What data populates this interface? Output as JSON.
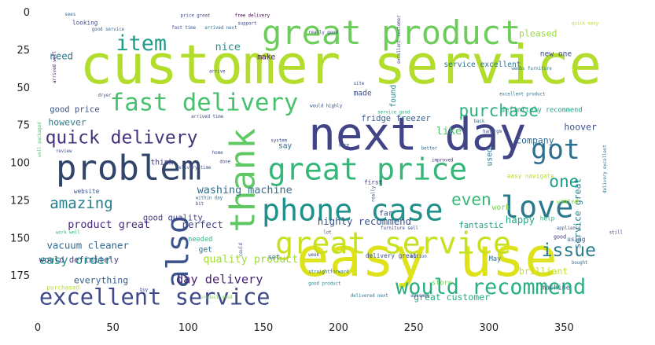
{
  "chart_data": {
    "type": "wordcloud",
    "title": "",
    "xlabel": "",
    "ylabel": "",
    "xlim": [
      0,
      400
    ],
    "ylim": [
      200,
      0
    ],
    "xticks": [
      0,
      50,
      100,
      150,
      200,
      250,
      300,
      350
    ],
    "yticks": [
      0,
      25,
      50,
      75,
      100,
      125,
      150,
      175
    ],
    "grid": false,
    "words": [
      {
        "text": "customer service",
        "x": 28,
        "y": 47,
        "size": 36,
        "color": "#b2dd2d"
      },
      {
        "text": "easy use",
        "x": 172,
        "y": 175,
        "size": 36,
        "color": "#dde318"
      },
      {
        "text": "next day",
        "x": 180,
        "y": 91,
        "size": 30,
        "color": "#414487"
      },
      {
        "text": "great product",
        "x": 149,
        "y": 21,
        "size": 22,
        "color": "#6ccd5a"
      },
      {
        "text": "problem",
        "x": 12,
        "y": 111,
        "size": 23,
        "color": "#31446b"
      },
      {
        "text": "thank",
        "x": 144,
        "y": 146,
        "size": 23,
        "color": "#5ec962",
        "rotate": true
      },
      {
        "text": "great price",
        "x": 153,
        "y": 111,
        "size": 20,
        "color": "#35b779"
      },
      {
        "text": "phone case",
        "x": 149,
        "y": 138,
        "size": 20,
        "color": "#21918c"
      },
      {
        "text": "also",
        "x": 100,
        "y": 183,
        "size": 20,
        "color": "#3b528b",
        "rotate": true
      },
      {
        "text": "love",
        "x": 308,
        "y": 136,
        "size": 20,
        "color": "#2a788e"
      },
      {
        "text": "great service",
        "x": 158,
        "y": 160,
        "size": 20,
        "color": "#c8e020"
      },
      {
        "text": "fast delivery",
        "x": 48,
        "y": 65,
        "size": 16,
        "color": "#48c16e"
      },
      {
        "text": "excellent service",
        "x": 1,
        "y": 194,
        "size": 15,
        "color": "#3e4989"
      },
      {
        "text": "would recommend",
        "x": 238,
        "y": 187,
        "size": 14,
        "color": "#29af7f"
      },
      {
        "text": "got",
        "x": 328,
        "y": 97,
        "size": 18,
        "color": "#2d708e"
      },
      {
        "text": "item",
        "x": 52,
        "y": 25,
        "size": 14,
        "color": "#1e9b8a"
      },
      {
        "text": "quick delivery",
        "x": 5,
        "y": 87,
        "size": 12,
        "color": "#46337e"
      },
      {
        "text": "purchase",
        "x": 280,
        "y": 69,
        "size": 11,
        "color": "#2db27d"
      },
      {
        "text": "issue",
        "x": 335,
        "y": 162,
        "size": 12,
        "color": "#287d8e"
      },
      {
        "text": "even",
        "x": 275,
        "y": 128,
        "size": 11,
        "color": "#38b977"
      },
      {
        "text": "one",
        "x": 340,
        "y": 116,
        "size": 11,
        "color": "#1fa088"
      },
      {
        "text": "amazing",
        "x": 8,
        "y": 130,
        "size": 10,
        "color": "#277f8e"
      },
      {
        "text": "washing machine",
        "x": 106,
        "y": 120,
        "size": 7,
        "color": "#2e6e8e"
      },
      {
        "text": "day delivery",
        "x": 92,
        "y": 180,
        "size": 8,
        "color": "#482475"
      },
      {
        "text": "easy order",
        "x": 1,
        "y": 167,
        "size": 8,
        "color": "#1f9e89"
      },
      {
        "text": "great customer",
        "x": 250,
        "y": 191,
        "size": 6,
        "color": "#27ad81"
      },
      {
        "text": "highly recommend",
        "x": 186,
        "y": 141,
        "size": 6.5,
        "color": "#39568c"
      },
      {
        "text": "product great",
        "x": 20,
        "y": 143,
        "size": 7,
        "color": "#482878"
      },
      {
        "text": "vacuum cleaner",
        "x": 6,
        "y": 157,
        "size": 6.5,
        "color": "#31688e"
      },
      {
        "text": "quality product",
        "x": 110,
        "y": 166,
        "size": 7,
        "color": "#a0da39"
      },
      {
        "text": "everything",
        "x": 24,
        "y": 180,
        "size": 6,
        "color": "#34608d"
      },
      {
        "text": "perfect",
        "x": 96,
        "y": 143,
        "size": 6.5,
        "color": "#3f4889"
      },
      {
        "text": "happy",
        "x": 311,
        "y": 140,
        "size": 6.5,
        "color": "#22a884"
      },
      {
        "text": "nice",
        "x": 118,
        "y": 25,
        "size": 7,
        "color": "#21918c"
      },
      {
        "text": "like",
        "x": 265,
        "y": 81,
        "size": 7,
        "color": "#50c46a"
      },
      {
        "text": "hoover",
        "x": 350,
        "y": 78,
        "size": 6,
        "color": "#3b528b"
      },
      {
        "text": "company",
        "x": 318,
        "y": 87,
        "size": 6,
        "color": "#30698e"
      },
      {
        "text": "pleased",
        "x": 320,
        "y": 16,
        "size": 6,
        "color": "#9bd93c"
      },
      {
        "text": "service great",
        "x": 361,
        "y": 157,
        "size": 6,
        "color": "#26828e",
        "rotate": true
      },
      {
        "text": "brilliant",
        "x": 320,
        "y": 174,
        "size": 6,
        "color": "#bddf26"
      },
      {
        "text": "fantastic",
        "x": 280,
        "y": 143,
        "size": 5.5,
        "color": "#20a386"
      },
      {
        "text": "good price",
        "x": 8,
        "y": 66,
        "size": 5.5,
        "color": "#3b528b"
      },
      {
        "text": "however",
        "x": 7,
        "y": 75,
        "size": 6,
        "color": "#277f8e"
      },
      {
        "text": "need",
        "x": 8,
        "y": 31,
        "size": 6.5,
        "color": "#2a788e"
      },
      {
        "text": "good quality",
        "x": 70,
        "y": 138,
        "size": 5.5,
        "color": "#433e85"
      },
      {
        "text": "would definitely",
        "x": 1,
        "y": 166,
        "size": 5.5,
        "color": "#414487"
      },
      {
        "text": "fridge freezer",
        "x": 215,
        "y": 72,
        "size": 5.5,
        "color": "#35608d"
      },
      {
        "text": "definitely recommend",
        "x": 308,
        "y": 66,
        "size": 4.5,
        "color": "#1fa187"
      },
      {
        "text": "new one",
        "x": 334,
        "y": 29,
        "size": 5,
        "color": "#3e4a89"
      },
      {
        "text": "service excellent",
        "x": 270,
        "y": 36,
        "size": 5,
        "color": "#2c728e"
      },
      {
        "text": "make",
        "x": 146,
        "y": 31,
        "size": 5,
        "color": "#471365"
      },
      {
        "text": "found",
        "x": 238,
        "y": 63,
        "size": 5,
        "color": "#25848e",
        "rotate": true
      },
      {
        "text": "made",
        "x": 210,
        "y": 55,
        "size": 5,
        "color": "#3d4e8a"
      },
      {
        "text": "say",
        "x": 160,
        "y": 90,
        "size": 5,
        "color": "#30698e"
      },
      {
        "text": "think",
        "x": 75,
        "y": 101,
        "size": 5,
        "color": "#443983"
      },
      {
        "text": "used",
        "x": 302,
        "y": 102,
        "size": 5,
        "color": "#2c738e",
        "rotate": true
      },
      {
        "text": "far",
        "x": 227,
        "y": 135,
        "size": 5,
        "color": "#3c4f8a"
      },
      {
        "text": "work",
        "x": 302,
        "y": 131,
        "size": 5,
        "color": "#7ad151"
      },
      {
        "text": "wanted",
        "x": 345,
        "y": 127,
        "size": 4,
        "color": "#99d83d"
      },
      {
        "text": "help",
        "x": 334,
        "y": 138,
        "size": 4,
        "color": "#29af7f"
      },
      {
        "text": "needed",
        "x": 100,
        "y": 152,
        "size": 4.5,
        "color": "#31b57b"
      },
      {
        "text": "get",
        "x": 107,
        "y": 159,
        "size": 5,
        "color": "#2e6f8e"
      },
      {
        "text": "set",
        "x": 153,
        "y": 164,
        "size": 4.5,
        "color": "#30698e"
      },
      {
        "text": "May",
        "x": 300,
        "y": 165,
        "size": 4.5,
        "color": "#2d718e"
      },
      {
        "text": "machine",
        "x": 335,
        "y": 184,
        "size": 4.5,
        "color": "#31688e"
      },
      {
        "text": "store",
        "x": 262,
        "y": 181,
        "size": 4.5,
        "color": "#73d056"
      },
      {
        "text": "delivery great",
        "x": 218,
        "y": 163,
        "size": 4,
        "color": "#3d4d8a"
      },
      {
        "text": "first",
        "x": 217,
        "y": 114,
        "size": 4,
        "color": "#46307e"
      },
      {
        "text": "website",
        "x": 24,
        "y": 120,
        "size": 4,
        "color": "#38588c"
      },
      {
        "text": "purchased",
        "x": 6,
        "y": 184,
        "size": 4,
        "color": "#b5de2b"
      },
      {
        "text": "looking",
        "x": 23,
        "y": 8,
        "size": 4,
        "color": "#3e4a89"
      },
      {
        "text": "easy navigate",
        "x": 312,
        "y": 110,
        "size": 4,
        "color": "#b8de29"
      },
      {
        "text": "using",
        "x": 352,
        "y": 152,
        "size": 4,
        "color": "#38588c"
      },
      {
        "text": "good",
        "x": 343,
        "y": 150,
        "size": 3.5,
        "color": "#453781"
      },
      {
        "text": "well packaged",
        "x": 2,
        "y": 96,
        "size": 3,
        "color": "#52c569",
        "rotate": true
      },
      {
        "text": "arrived well",
        "x": 12,
        "y": 47,
        "size": 3,
        "color": "#471164",
        "rotate": true
      },
      {
        "text": "free delivery",
        "x": 131,
        "y": 3,
        "size": 3,
        "color": "#440154"
      },
      {
        "text": "support",
        "x": 133,
        "y": 8,
        "size": 3,
        "color": "#3e4989"
      },
      {
        "text": "price great",
        "x": 95,
        "y": 3,
        "size": 3,
        "color": "#404688"
      },
      {
        "text": "good service",
        "x": 36,
        "y": 12,
        "size": 3,
        "color": "#355f8d"
      },
      {
        "text": "fast time",
        "x": 89,
        "y": 11,
        "size": 3,
        "color": "#3b528b"
      },
      {
        "text": "arrived next",
        "x": 111,
        "y": 11,
        "size": 3,
        "color": "#2e6e8e"
      },
      {
        "text": "really good",
        "x": 180,
        "y": 14,
        "size": 3,
        "color": "#3e4a89"
      },
      {
        "text": "excellent customer",
        "x": 241,
        "y": 34,
        "size": 3,
        "color": "#3f4788",
        "rotate": true
      },
      {
        "text": "wembs furniture",
        "x": 315,
        "y": 38,
        "size": 3,
        "color": "#2a778e"
      },
      {
        "text": "quick easy",
        "x": 355,
        "y": 8,
        "size": 3,
        "color": "#bddf26"
      },
      {
        "text": "excellent product",
        "x": 307,
        "y": 55,
        "size": 3,
        "color": "#2c728e"
      },
      {
        "text": "would highly",
        "x": 181,
        "y": 63,
        "size": 3,
        "color": "#3c4f8a"
      },
      {
        "text": "service good",
        "x": 226,
        "y": 67,
        "size": 3,
        "color": "#29af7f"
      },
      {
        "text": "arrived time",
        "x": 102,
        "y": 70,
        "size": 3,
        "color": "#3e4a89"
      },
      {
        "text": "delivery time",
        "x": 92,
        "y": 104,
        "size": 3,
        "color": "#3b528b"
      },
      {
        "text": "within day",
        "x": 105,
        "y": 124,
        "size": 3,
        "color": "#30698e"
      },
      {
        "text": "delivery excellent",
        "x": 378,
        "y": 120,
        "size": 3,
        "color": "#2d718e",
        "rotate": true
      },
      {
        "text": "straightforward",
        "x": 180,
        "y": 173,
        "size": 3,
        "color": "#2e6f8e"
      },
      {
        "text": "delivered next",
        "x": 208,
        "y": 189,
        "size": 3,
        "color": "#2c738e"
      },
      {
        "text": "good product",
        "x": 180,
        "y": 181,
        "size": 3,
        "color": "#24868e"
      },
      {
        "text": "product good",
        "x": 108,
        "y": 190,
        "size": 3,
        "color": "#7ad151"
      },
      {
        "text": "appliance",
        "x": 345,
        "y": 144,
        "size": 3,
        "color": "#38598c"
      },
      {
        "text": "bought",
        "x": 355,
        "y": 167,
        "size": 3,
        "color": "#2e6e8e"
      },
      {
        "text": "still",
        "x": 380,
        "y": 147,
        "size": 3,
        "color": "#3e4a89"
      },
      {
        "text": "furniture sell",
        "x": 228,
        "y": 144,
        "size": 3,
        "color": "#3e4a89"
      },
      {
        "text": "work well",
        "x": 12,
        "y": 147,
        "size": 3,
        "color": "#31b57b"
      },
      {
        "text": "handrgm",
        "x": 296,
        "y": 80,
        "size": 3,
        "color": "#3b528b"
      },
      {
        "text": "better",
        "x": 255,
        "y": 91,
        "size": 3,
        "color": "#30698e"
      },
      {
        "text": "improved",
        "x": 262,
        "y": 99,
        "size": 3,
        "color": "#472d7b"
      },
      {
        "text": "dryer",
        "x": 40,
        "y": 56,
        "size": 3,
        "color": "#3b528b"
      },
      {
        "text": "sees",
        "x": 18,
        "y": 2,
        "size": 3,
        "color": "#31688e"
      },
      {
        "text": "system",
        "x": 155,
        "y": 86,
        "size": 3,
        "color": "#3e4a89"
      },
      {
        "text": "review",
        "x": 12,
        "y": 93,
        "size": 3,
        "color": "#3b528b"
      },
      {
        "text": "site",
        "x": 210,
        "y": 48,
        "size": 3,
        "color": "#3e4a89"
      },
      {
        "text": "back",
        "x": 290,
        "y": 73,
        "size": 3,
        "color": "#2c728e"
      },
      {
        "text": "really",
        "x": 224,
        "y": 126,
        "size": 3,
        "color": "#3b528b",
        "rotate": true
      },
      {
        "text": "option",
        "x": 248,
        "y": 163,
        "size": 3,
        "color": "#3e4a89"
      },
      {
        "text": "awesome",
        "x": 248,
        "y": 189,
        "size": 3,
        "color": "#3b528b"
      },
      {
        "text": "buy",
        "x": 68,
        "y": 185,
        "size": 3,
        "color": "#3e4a89"
      },
      {
        "text": "could",
        "x": 136,
        "y": 162,
        "size": 3,
        "color": "#3b528b",
        "rotate": true
      },
      {
        "text": "arrive",
        "x": 114,
        "y": 40,
        "size": 3,
        "color": "#3e4a89"
      },
      {
        "text": "home",
        "x": 116,
        "y": 94,
        "size": 3,
        "color": "#3b528b"
      },
      {
        "text": "done",
        "x": 121,
        "y": 100,
        "size": 3,
        "color": "#3e4a89"
      },
      {
        "text": "sure",
        "x": 200,
        "y": 89,
        "size": 3,
        "color": "#3b528b"
      },
      {
        "text": "bit",
        "x": 105,
        "y": 128,
        "size": 3,
        "color": "#3e4a89"
      },
      {
        "text": "lot",
        "x": 190,
        "y": 147,
        "size": 3,
        "color": "#3b528b"
      },
      {
        "text": "week",
        "x": 180,
        "y": 162,
        "size": 3,
        "color": "#3e4a89"
      }
    ]
  }
}
